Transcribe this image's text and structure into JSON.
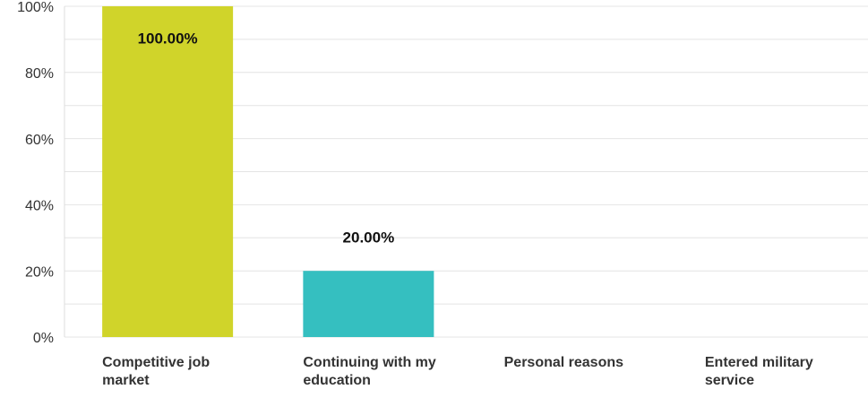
{
  "chart_data": {
    "type": "bar",
    "categories": [
      "Competitive job market",
      "Continuing with my education",
      "Personal reasons",
      "Entered military service"
    ],
    "values": [
      100,
      20,
      0,
      0
    ],
    "value_labels": [
      "100.00%",
      "20.00%",
      null,
      null
    ],
    "colors": [
      "#d0d42a",
      "#35bfc0",
      "#f7b335",
      "#8dc63f"
    ],
    "ylim": [
      0,
      100
    ],
    "yticks": [
      {
        "value": 0,
        "label": "0%"
      },
      {
        "value": 20,
        "label": "20%"
      },
      {
        "value": 40,
        "label": "40%"
      },
      {
        "value": 60,
        "label": "60%"
      },
      {
        "value": 80,
        "label": "80%"
      },
      {
        "value": 100,
        "label": "100%"
      }
    ],
    "minor_yticks": [
      10,
      30,
      50,
      70,
      90
    ],
    "grid": true
  }
}
